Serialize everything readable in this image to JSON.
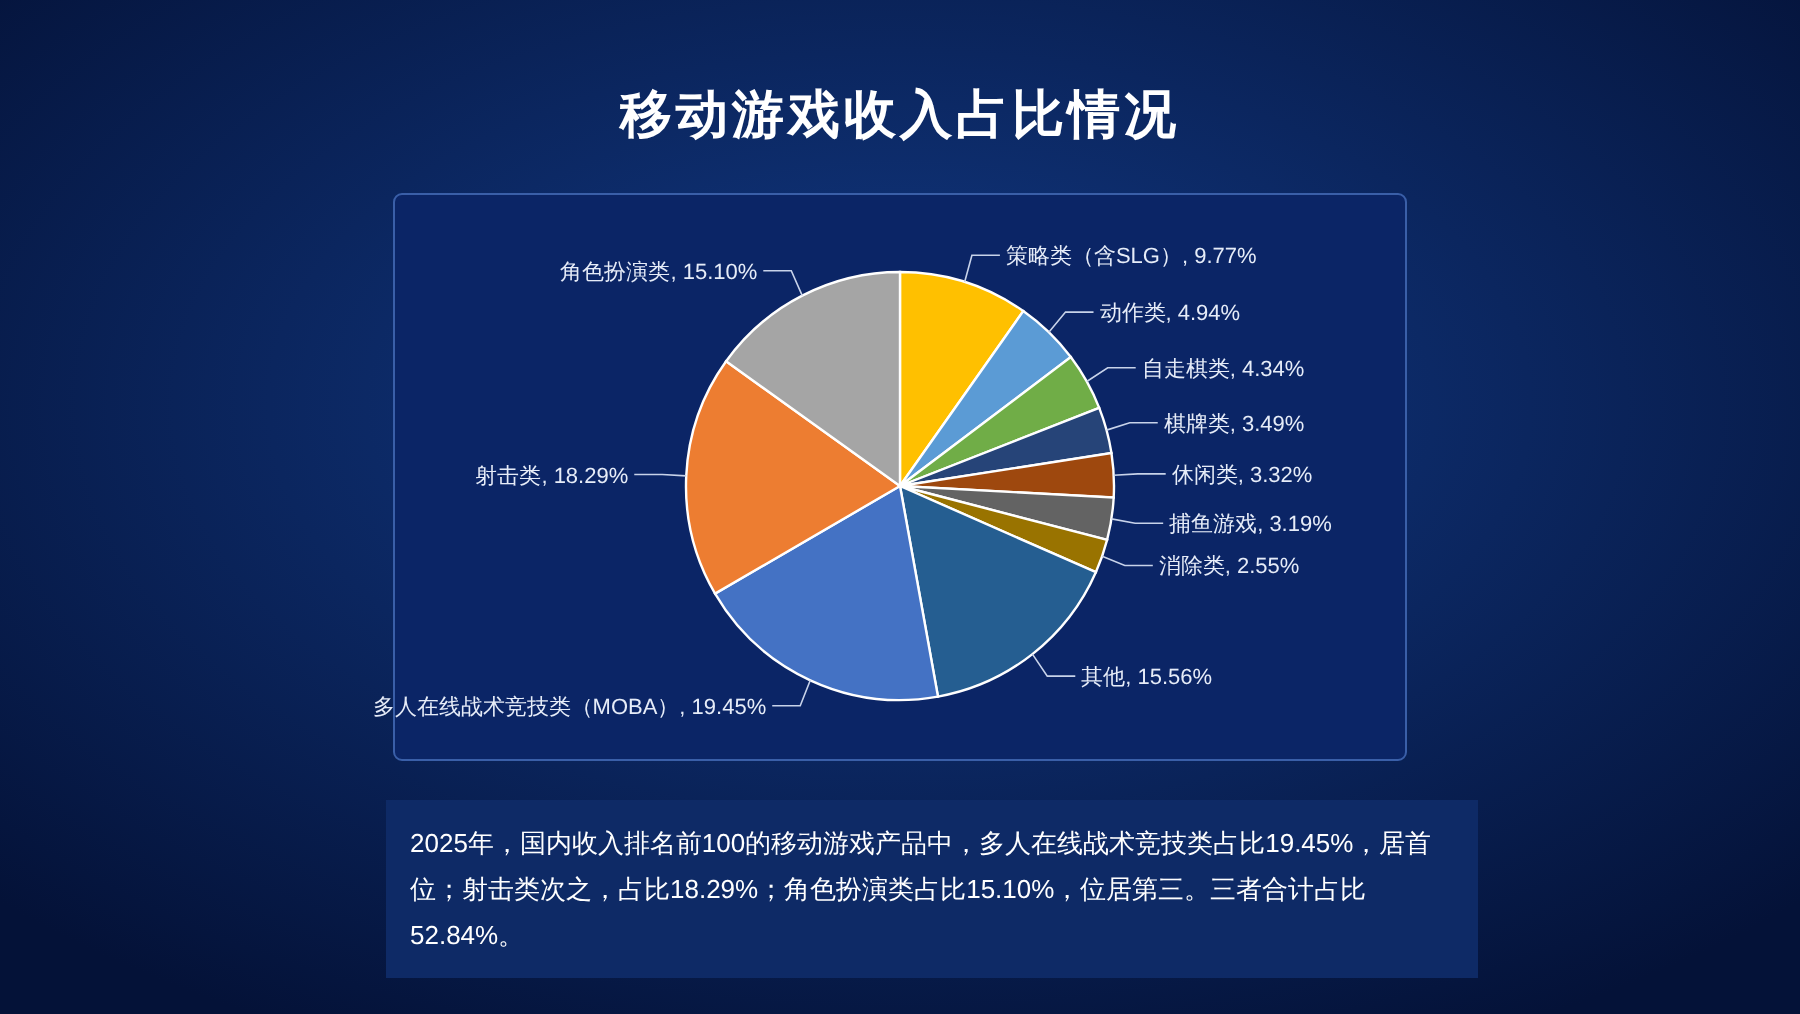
{
  "chart_data": {
    "type": "pie",
    "title": "移动游戏收入占比情况",
    "categories": [
      "策略类（含SLG）",
      "动作类",
      "自走棋类",
      "棋牌类",
      "休闲类",
      "捕鱼游戏",
      "消除类",
      "其他",
      "多人在线战术竞技类（MOBA）",
      "射击类",
      "角色扮演类"
    ],
    "values": [
      9.77,
      4.94,
      4.34,
      3.49,
      3.32,
      3.19,
      2.55,
      15.56,
      19.45,
      18.29,
      15.1
    ],
    "value_labels": [
      "9.77%",
      "4.94%",
      "4.34%",
      "3.49%",
      "3.32%",
      "3.19%",
      "2.55%",
      "15.56%",
      "19.45%",
      "18.29%",
      "15.10%"
    ],
    "colors": [
      "#ffc000",
      "#5b9bd5",
      "#70ad47",
      "#264478",
      "#9e480e",
      "#636363",
      "#997300",
      "#255e91",
      "#4472c4",
      "#ed7d31",
      "#a5a5a5"
    ],
    "annotations": [
      "2025年，国内收入排名前100的移动游戏产品中，多人在线战术竞技类占比19.45%，居首位；射击类次之，占比18.29%；角色扮演类占比15.10%，位居第三。三者合计占比52.84%。"
    ]
  }
}
